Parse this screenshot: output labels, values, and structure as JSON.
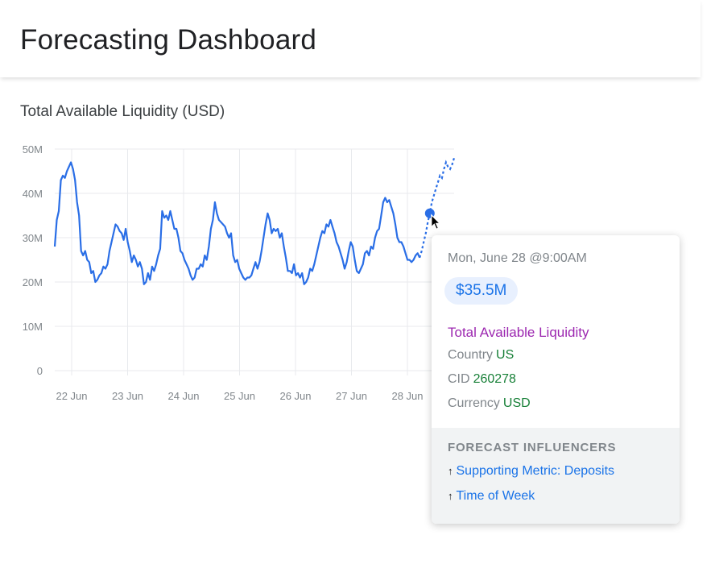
{
  "header": {
    "title": "Forecasting Dashboard"
  },
  "chart_data": {
    "type": "line",
    "title": "Total Available Liquidity (USD)",
    "ylim": [
      0,
      50
    ],
    "y_ticks": [
      "0",
      "10M",
      "20M",
      "30M",
      "40M",
      "50M"
    ],
    "x_tick_labels": [
      "22 Jun",
      "23 Jun",
      "24 Jun",
      "25 Jun",
      "26 Jun",
      "27 Jun",
      "28 Jun"
    ],
    "grid": true,
    "series": [
      {
        "values": [
          28,
          34,
          36,
          43,
          44,
          43.5,
          45,
          46,
          47,
          45.5,
          43,
          38,
          35,
          27,
          26,
          27,
          25,
          24.5,
          22,
          22.5,
          20,
          20.5,
          21.5,
          22,
          23.5,
          23,
          24,
          27,
          29,
          31,
          33,
          32.5,
          31.5,
          31,
          29.5,
          32,
          29,
          27,
          24.5,
          26,
          25,
          23.5,
          24.5,
          23,
          19.5,
          20,
          22,
          20.5,
          23.5,
          22.5,
          24,
          26,
          27.5,
          36,
          34.5,
          35,
          34,
          36,
          34,
          32,
          32,
          30,
          27,
          26.5,
          25,
          24,
          23,
          21.5,
          20.5,
          21,
          23,
          23,
          24,
          23.5,
          26,
          25,
          28,
          32,
          34,
          38,
          35.5,
          34,
          33.5,
          33,
          32.5,
          31,
          30,
          31,
          26,
          24.5,
          25,
          23,
          22,
          21,
          20.5,
          21,
          21,
          21.5,
          23,
          24.5,
          23,
          24.5,
          27,
          30,
          33,
          35.5,
          34,
          31,
          32,
          31.5,
          32,
          30,
          31,
          28,
          25.5,
          22.5,
          22.5,
          22,
          24,
          21.5,
          22,
          21,
          22,
          19.5,
          20,
          21,
          23,
          22.5,
          24,
          26,
          28,
          30,
          31.5,
          31,
          33,
          32.5,
          34,
          32.5,
          31,
          29,
          28,
          26.5,
          25,
          23,
          24.5,
          27,
          29,
          28,
          25,
          22.5,
          22,
          23,
          24,
          26.5,
          27,
          26,
          28,
          27.5,
          30,
          31.5,
          32,
          35,
          38,
          39,
          38,
          38.5,
          37,
          35.5,
          33,
          30,
          29,
          29,
          28,
          26.5,
          25,
          25,
          24.5,
          25,
          26,
          26.5,
          25.5
        ],
        "forecast_values": [
          25.5,
          27,
          29,
          31,
          33.5,
          35.5,
          38,
          39.5,
          41,
          42.5,
          44,
          43.5,
          45.5,
          47,
          46,
          45.5,
          46.5,
          48
        ]
      }
    ],
    "highlight_index": 5
  },
  "tooltip": {
    "time": "Mon, June 28 @9:00AM",
    "value": "$35.5M",
    "metric": "Total Available Liquidity",
    "fields": [
      {
        "label": "Country",
        "value": "US"
      },
      {
        "label": "CID",
        "value": "260278"
      },
      {
        "label": "Currency",
        "value": "USD"
      }
    ],
    "influencers_heading": "FORECAST INFLUENCERS",
    "influencers": [
      {
        "arrow": "↑",
        "label": "Supporting Metric: Deposits"
      },
      {
        "arrow": "↑",
        "label": "Time of Week"
      }
    ]
  },
  "colors": {
    "line": "#2a6ee6",
    "grid": "#e8eaed",
    "axis_text": "#80868b",
    "metric": "#9c27b0",
    "field_value": "#188038",
    "link": "#1a73e8"
  },
  "icons": {
    "cursor": "mouse-pointer-icon",
    "influencer_arrow": "arrow-up-icon"
  }
}
